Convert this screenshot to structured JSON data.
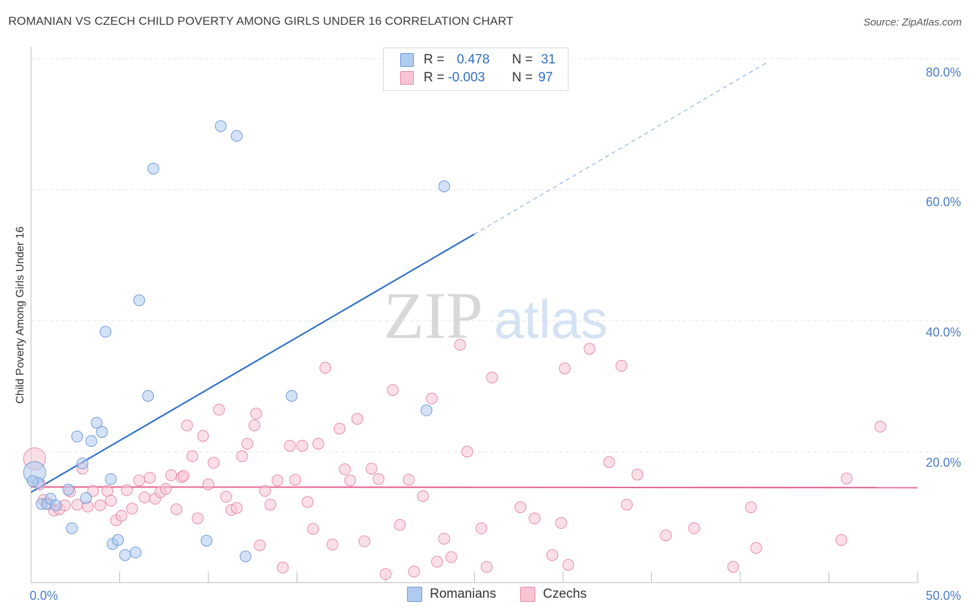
{
  "title": "ROMANIAN VS CZECH CHILD POVERTY AMONG GIRLS UNDER 16 CORRELATION CHART",
  "source": "Source: ZipAtlas.com",
  "watermark": {
    "zip": "ZIP",
    "atlas": "atlas"
  },
  "legend_top": {
    "rows": [
      {
        "r_label": "R =",
        "r_value": "0.478",
        "n_label": "N =",
        "n_value": "31",
        "color": "#aecbf0",
        "border": "#6e9ad6"
      },
      {
        "r_label": "R =",
        "r_value": "-0.003",
        "n_label": "N =",
        "n_value": "97",
        "color": "#f8c4d4",
        "border": "#e68aa6"
      }
    ]
  },
  "legend_bottom": [
    {
      "label": "Romanians",
      "color": "#aecbf0",
      "border": "#6e9ad6"
    },
    {
      "label": "Czechs",
      "color": "#f8c4d4",
      "border": "#e68aa6"
    }
  ],
  "chart_data": {
    "type": "scatter",
    "title": "ROMANIAN VS CZECH CHILD POVERTY AMONG GIRLS UNDER 16 CORRELATION CHART",
    "xlabel": "",
    "ylabel": "Child Poverty Among Girls Under 16",
    "xlim": [
      0,
      50
    ],
    "ylim": [
      0,
      80
    ],
    "x_tick_labels": [
      "0.0%",
      "50.0%"
    ],
    "y_tick_labels": [
      "20.0%",
      "40.0%",
      "60.0%",
      "80.0%"
    ],
    "y_ticks": [
      20,
      40,
      60,
      80
    ],
    "grid": true,
    "legend_position": "top-center",
    "series": [
      {
        "name": "Romanians",
        "color": "#6e9ad6",
        "fill": "#aecbf0",
        "trend": {
          "x": [
            0,
            25
          ],
          "y": [
            13.8,
            53.2
          ],
          "dashed_to": [
            41.5,
            79.4
          ],
          "color": "#2f6fc7"
        },
        "points": [
          [
            0.2,
            16.8
          ],
          [
            0.4,
            15.2
          ],
          [
            0.6,
            12.0
          ],
          [
            0.9,
            12.0
          ],
          [
            1.1,
            12.8
          ],
          [
            1.4,
            11.8
          ],
          [
            2.1,
            14.2
          ],
          [
            2.3,
            8.3
          ],
          [
            2.6,
            22.3
          ],
          [
            2.9,
            18.2
          ],
          [
            3.1,
            12.9
          ],
          [
            3.4,
            21.6
          ],
          [
            3.7,
            24.4
          ],
          [
            4.0,
            23.0
          ],
          [
            4.2,
            38.3
          ],
          [
            4.5,
            15.8
          ],
          [
            4.6,
            5.9
          ],
          [
            4.9,
            6.5
          ],
          [
            5.3,
            4.2
          ],
          [
            5.9,
            4.6
          ],
          [
            6.1,
            43.1
          ],
          [
            6.6,
            28.5
          ],
          [
            6.9,
            63.2
          ],
          [
            9.9,
            6.4
          ],
          [
            10.7,
            69.7
          ],
          [
            11.6,
            68.2
          ],
          [
            12.1,
            4.0
          ],
          [
            14.7,
            28.5
          ],
          [
            22.3,
            26.3
          ],
          [
            23.3,
            60.5
          ],
          [
            0.1,
            15.5
          ]
        ]
      },
      {
        "name": "Czechs",
        "color": "#e68aa6",
        "fill": "#f8c4d4",
        "trend": {
          "x": [
            0,
            50
          ],
          "y": [
            14.6,
            14.5
          ],
          "color": "#e86a93"
        },
        "points": [
          [
            0.2,
            18.9
          ],
          [
            0.5,
            15.0
          ],
          [
            0.7,
            12.6
          ],
          [
            1.0,
            12.0
          ],
          [
            1.3,
            11.0
          ],
          [
            1.6,
            11.2
          ],
          [
            1.9,
            11.8
          ],
          [
            2.2,
            13.9
          ],
          [
            2.6,
            11.9
          ],
          [
            2.9,
            17.4
          ],
          [
            3.2,
            11.6
          ],
          [
            3.5,
            14.0
          ],
          [
            3.9,
            11.8
          ],
          [
            4.3,
            14.0
          ],
          [
            4.5,
            12.5
          ],
          [
            4.8,
            9.5
          ],
          [
            5.1,
            10.2
          ],
          [
            5.4,
            14.1
          ],
          [
            5.7,
            11.3
          ],
          [
            6.1,
            15.6
          ],
          [
            6.4,
            13.0
          ],
          [
            6.7,
            16.0
          ],
          [
            7.0,
            12.8
          ],
          [
            7.3,
            13.8
          ],
          [
            7.6,
            14.3
          ],
          [
            7.9,
            16.4
          ],
          [
            8.2,
            11.2
          ],
          [
            8.5,
            16.1
          ],
          [
            8.8,
            24.0
          ],
          [
            9.1,
            19.3
          ],
          [
            9.4,
            9.8
          ],
          [
            9.7,
            22.4
          ],
          [
            10.0,
            15.0
          ],
          [
            10.3,
            18.3
          ],
          [
            10.6,
            26.4
          ],
          [
            11.0,
            13.1
          ],
          [
            11.3,
            11.1
          ],
          [
            11.6,
            11.4
          ],
          [
            11.9,
            19.3
          ],
          [
            12.2,
            21.2
          ],
          [
            12.6,
            24.0
          ],
          [
            12.9,
            5.7
          ],
          [
            13.2,
            14.0
          ],
          [
            13.5,
            11.9
          ],
          [
            13.9,
            15.6
          ],
          [
            14.2,
            2.3
          ],
          [
            14.6,
            20.9
          ],
          [
            14.9,
            15.7
          ],
          [
            15.3,
            20.9
          ],
          [
            15.6,
            12.3
          ],
          [
            15.9,
            8.2
          ],
          [
            16.2,
            21.2
          ],
          [
            16.6,
            32.8
          ],
          [
            17.0,
            5.8
          ],
          [
            17.4,
            23.5
          ],
          [
            17.7,
            17.3
          ],
          [
            18.0,
            15.6
          ],
          [
            18.4,
            25.0
          ],
          [
            18.8,
            6.3
          ],
          [
            19.2,
            17.4
          ],
          [
            19.6,
            15.8
          ],
          [
            20.0,
            1.3
          ],
          [
            20.4,
            29.4
          ],
          [
            20.8,
            8.8
          ],
          [
            21.3,
            15.7
          ],
          [
            21.6,
            1.7
          ],
          [
            22.1,
            13.2
          ],
          [
            22.6,
            28.1
          ],
          [
            22.9,
            3.2
          ],
          [
            23.3,
            6.7
          ],
          [
            23.7,
            3.9
          ],
          [
            24.2,
            36.3
          ],
          [
            24.6,
            20.0
          ],
          [
            25.4,
            8.3
          ],
          [
            25.7,
            2.4
          ],
          [
            26.0,
            31.3
          ],
          [
            27.6,
            11.5
          ],
          [
            28.4,
            9.8
          ],
          [
            29.4,
            4.2
          ],
          [
            29.9,
            9.1
          ],
          [
            30.1,
            32.7
          ],
          [
            30.3,
            2.7
          ],
          [
            31.5,
            35.7
          ],
          [
            32.6,
            18.4
          ],
          [
            33.3,
            33.1
          ],
          [
            33.6,
            11.9
          ],
          [
            34.2,
            16.5
          ],
          [
            35.8,
            7.2
          ],
          [
            37.4,
            8.3
          ],
          [
            39.6,
            2.4
          ],
          [
            40.6,
            11.5
          ],
          [
            40.9,
            5.3
          ],
          [
            45.7,
            6.5
          ],
          [
            46.0,
            15.9
          ],
          [
            47.9,
            23.8
          ],
          [
            12.7,
            25.8
          ],
          [
            8.6,
            16.3
          ]
        ]
      }
    ]
  }
}
